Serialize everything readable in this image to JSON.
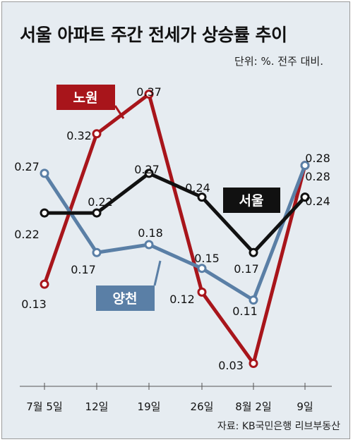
{
  "title": "서울 아파트 주간 전세가 상승률 추이",
  "unit_note": "단위: %. 전주 대비.",
  "source": "자료: KB국민은행 리브부동산",
  "colors": {
    "노원": "#a8151b",
    "서울": "#111111",
    "양천": "#5a7fa6",
    "background": "#e6ecf1"
  },
  "chart_data": {
    "type": "line",
    "title": "서울 아파트 주간 전세가 상승률 추이",
    "categories": [
      "7월 5일",
      "12일",
      "19일",
      "26일",
      "8월 2일",
      "9일"
    ],
    "ylim": [
      0,
      0.4
    ],
    "grid": false,
    "series": [
      {
        "name": "노원",
        "values": [
          0.13,
          0.32,
          0.37,
          0.12,
          0.03,
          0.28
        ],
        "labels": [
          "0.13",
          "0.32",
          "0.37",
          "0.12",
          "0.03",
          "0.28"
        ]
      },
      {
        "name": "서울",
        "values": [
          0.22,
          0.22,
          0.27,
          0.24,
          0.17,
          0.24
        ],
        "labels": [
          "0.22",
          "0.22",
          "0.27",
          "0.24",
          "0.17",
          "0.24"
        ]
      },
      {
        "name": "양천",
        "values": [
          0.27,
          0.17,
          0.18,
          0.15,
          0.11,
          0.28
        ],
        "labels": [
          "0.27",
          "0.17",
          "0.18",
          "0.15",
          "0.11",
          "0.28"
        ]
      }
    ]
  }
}
